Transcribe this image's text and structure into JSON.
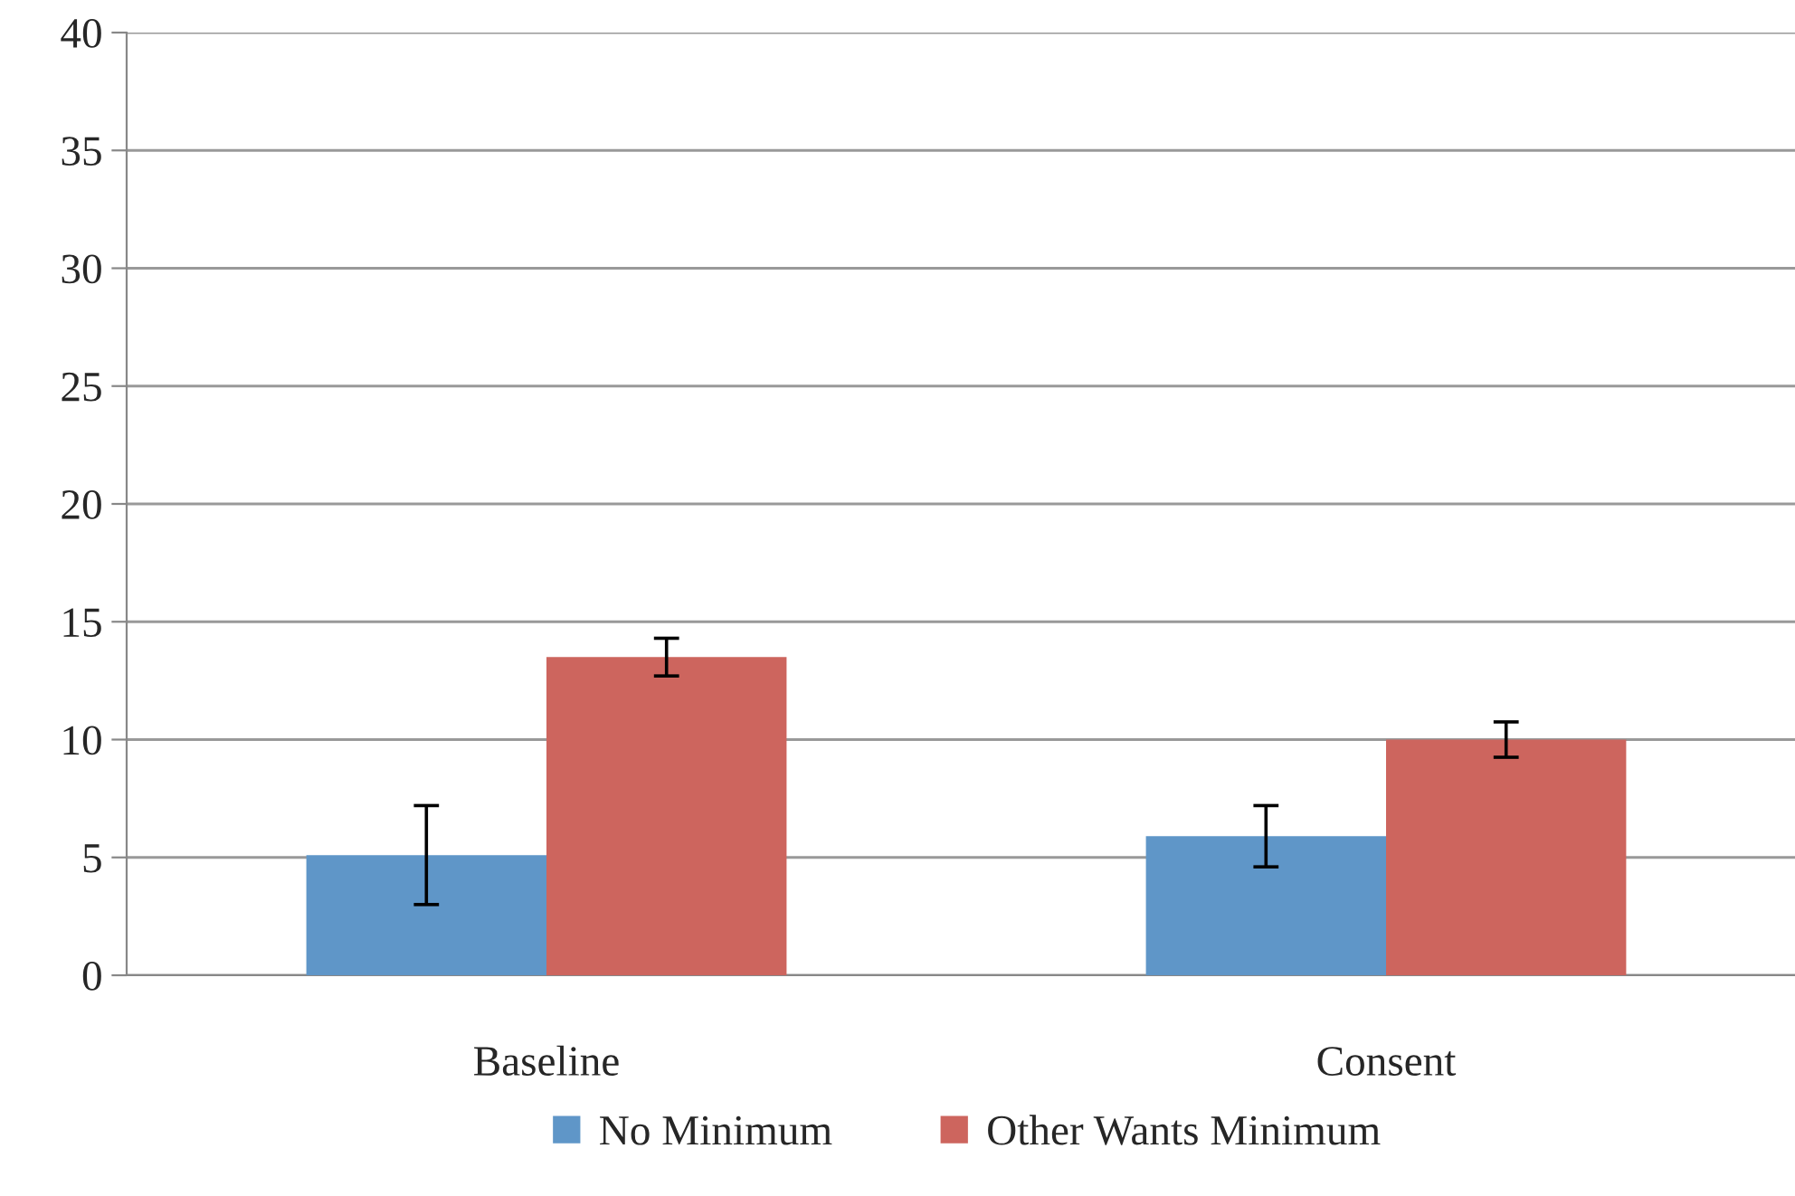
{
  "chart_data": {
    "type": "bar",
    "categories": [
      "Baseline",
      "Consent"
    ],
    "series": [
      {
        "name": "No Minimum",
        "color": "#5f96c8",
        "values": [
          5.1,
          5.9
        ],
        "errors": [
          2.1,
          1.3
        ]
      },
      {
        "name": "Other Wants Minimum",
        "color": "#cd655e",
        "values": [
          13.5,
          10.0
        ],
        "errors": [
          0.8,
          0.75
        ]
      }
    ],
    "ylim": [
      0,
      40
    ],
    "yticks": [
      0,
      5,
      10,
      15,
      20,
      25,
      30,
      35,
      40
    ],
    "grid": "y",
    "legend": "bottom"
  }
}
